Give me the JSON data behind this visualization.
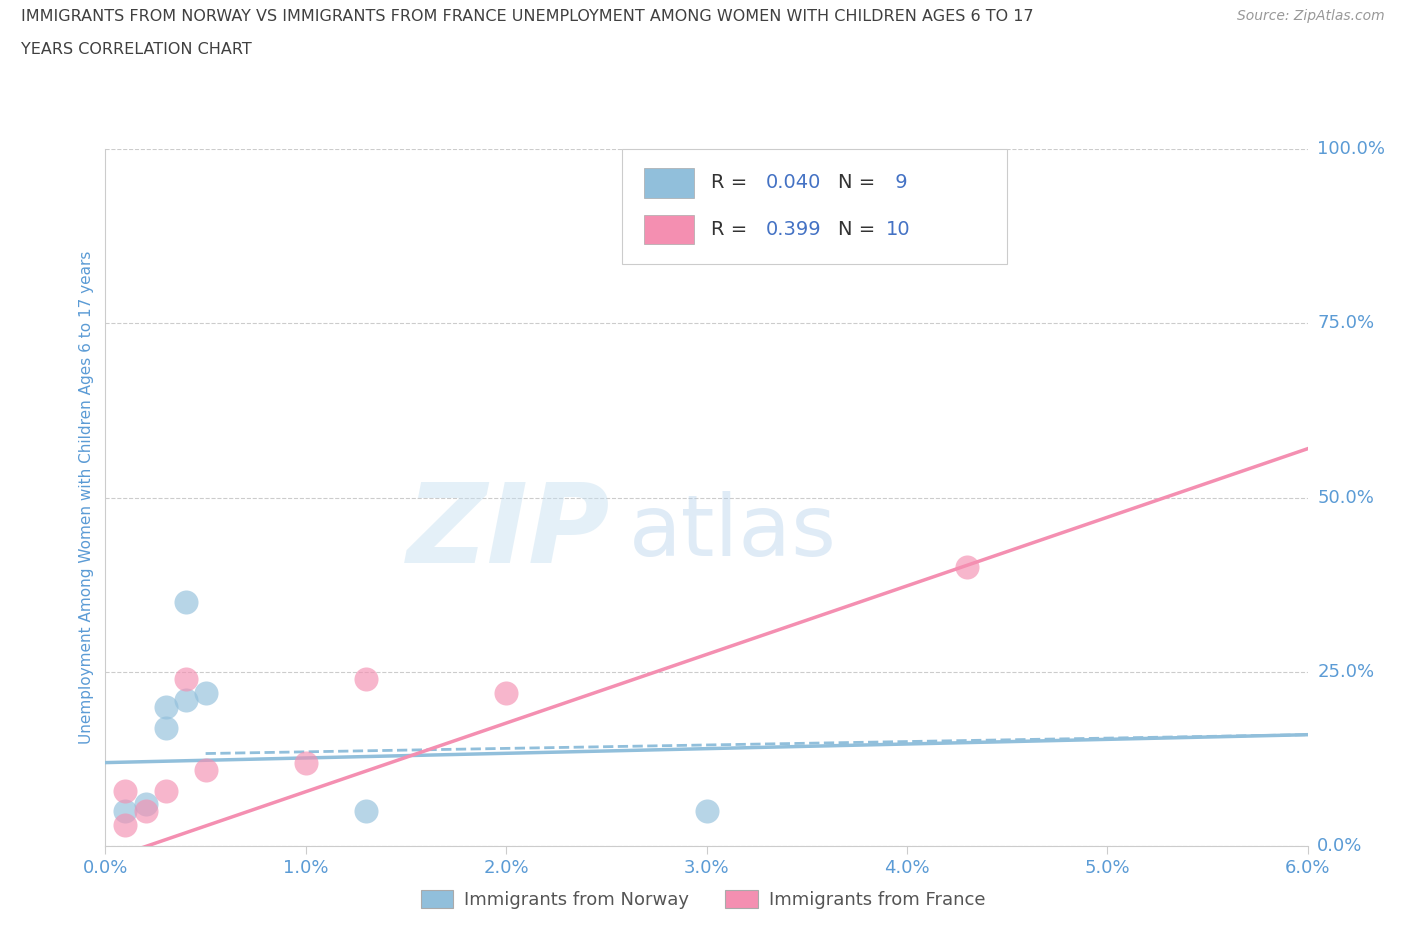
{
  "title_line1": "IMMIGRANTS FROM NORWAY VS IMMIGRANTS FROM FRANCE UNEMPLOYMENT AMONG WOMEN WITH CHILDREN AGES 6 TO 17",
  "title_line2": "YEARS CORRELATION CHART",
  "source": "Source: ZipAtlas.com",
  "ylabel": "Unemployment Among Women with Children Ages 6 to 17 years",
  "xlim": [
    0.0,
    0.06
  ],
  "ylim": [
    0.0,
    1.0
  ],
  "xticks": [
    0.0,
    0.01,
    0.02,
    0.03,
    0.04,
    0.05,
    0.06
  ],
  "xticklabels": [
    "0.0%",
    "1.0%",
    "2.0%",
    "3.0%",
    "4.0%",
    "5.0%",
    "6.0%"
  ],
  "yticks_right": [
    0.0,
    0.25,
    0.5,
    0.75,
    1.0
  ],
  "yticklabels_right": [
    "0.0%",
    "25.0%",
    "50.0%",
    "75.0%",
    "100.0%"
  ],
  "norway_color": "#91bfdb",
  "france_color": "#f48fb1",
  "norway_R": 0.04,
  "norway_N": 9,
  "france_R": 0.399,
  "france_N": 10,
  "norway_scatter_x": [
    0.001,
    0.002,
    0.003,
    0.003,
    0.004,
    0.004,
    0.005,
    0.013,
    0.03
  ],
  "norway_scatter_y": [
    0.05,
    0.06,
    0.2,
    0.17,
    0.21,
    0.35,
    0.22,
    0.05,
    0.05
  ],
  "france_scatter_x": [
    0.001,
    0.001,
    0.002,
    0.003,
    0.004,
    0.005,
    0.01,
    0.013,
    0.02,
    0.043
  ],
  "france_scatter_y": [
    0.03,
    0.08,
    0.05,
    0.08,
    0.24,
    0.11,
    0.12,
    0.24,
    0.22,
    0.4
  ],
  "norway_trend_x": [
    0.0,
    0.06
  ],
  "norway_trend_y": [
    0.12,
    0.16
  ],
  "france_trend_x": [
    0.0,
    0.06
  ],
  "france_trend_y": [
    -0.02,
    0.57
  ],
  "watermark_zip": "ZIP",
  "watermark_atlas": "atlas",
  "background_color": "#ffffff",
  "grid_color": "#cccccc",
  "tick_label_color": "#5b9bd5",
  "ylabel_color": "#5b9bd5",
  "title_color": "#404040",
  "source_color": "#999999",
  "legend_label_dark": "#333333",
  "legend_label_blue": "#4472c4"
}
